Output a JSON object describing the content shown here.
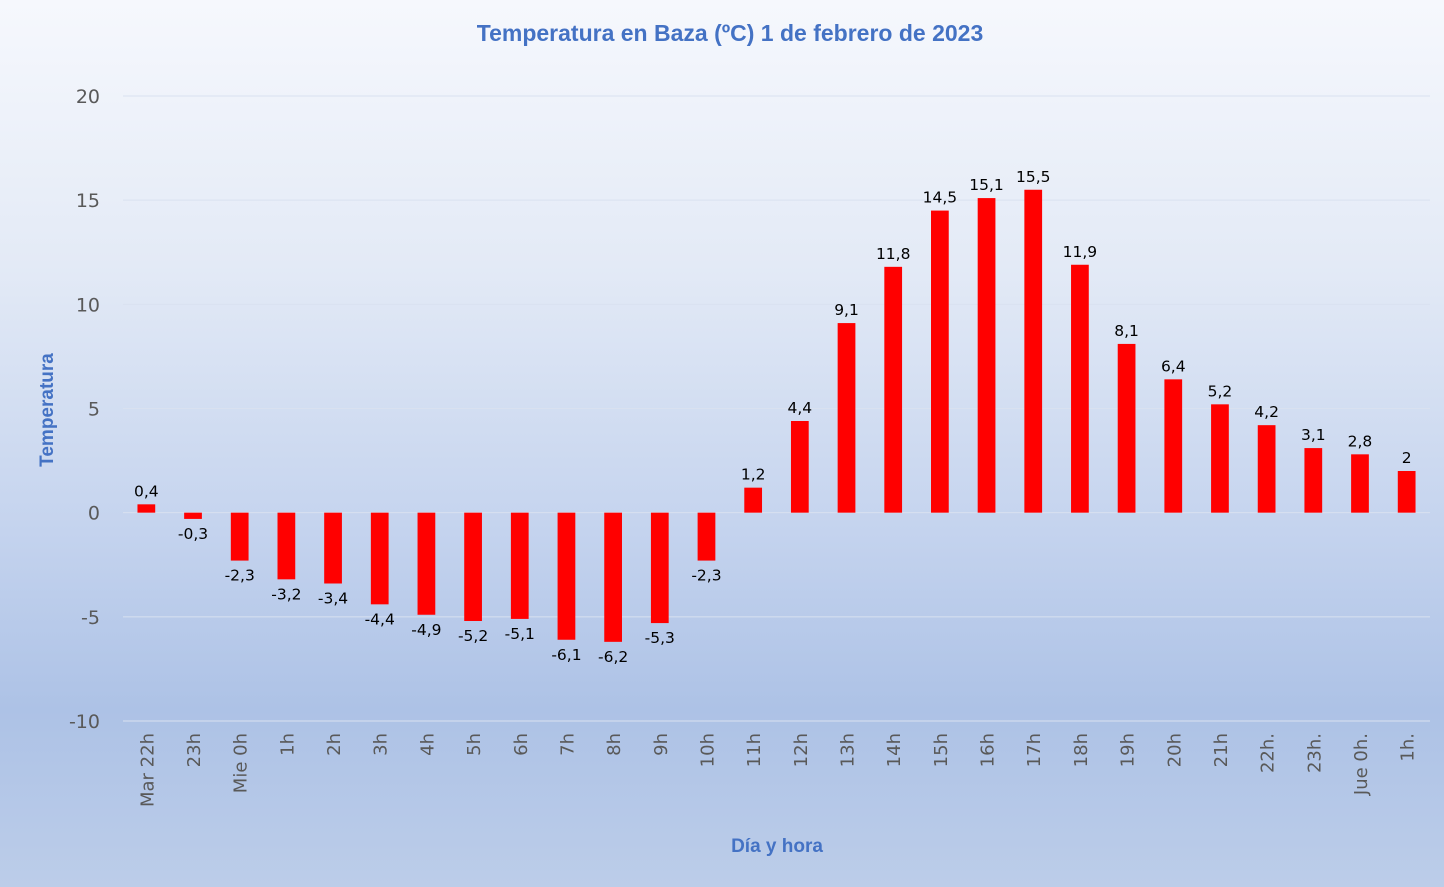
{
  "chart_data": {
    "type": "bar",
    "title": "Temperatura en Baza (ºC) 1 de febrero de 2023",
    "xlabel": "Día y hora",
    "ylabel": "Temperatura",
    "ylim": [
      -10,
      20
    ],
    "yticks": [
      20,
      15,
      10,
      5,
      0,
      -5,
      -10
    ],
    "grid": true,
    "legend": "none",
    "bar_color": "#ff0000",
    "title_color": "#4472c4",
    "categories": [
      "Mar 22h",
      "23h",
      "Mie 0h",
      "1h",
      "2h",
      "3h",
      "4h",
      "5h",
      "6h",
      "7h",
      "8h",
      "9h",
      "10h",
      "11h",
      "12h",
      "13h",
      "14h",
      "15h",
      "16h",
      "17h",
      "18h",
      "19h",
      "20h",
      "21h",
      "22h.",
      "23h.",
      "Jue 0h.",
      "1h."
    ],
    "values": [
      0.4,
      -0.3,
      -2.3,
      -3.2,
      -3.4,
      -4.4,
      -4.9,
      -5.2,
      -5.1,
      -6.1,
      -6.2,
      -5.3,
      -2.3,
      1.2,
      4.4,
      9.1,
      11.8,
      14.5,
      15.1,
      15.5,
      11.9,
      8.1,
      6.4,
      5.2,
      4.2,
      3.1,
      2.8,
      2
    ],
    "data_labels": [
      "0,4",
      "-0,3",
      "-2,3",
      "-3,2",
      "-3,4",
      "-4,4",
      "-4,9",
      "-5,2",
      "-5,1",
      "-6,1",
      "-6,2",
      "-5,3",
      "-2,3",
      "1,2",
      "4,4",
      "9,1",
      "11,8",
      "14,5",
      "15,1",
      "15,5",
      "11,9",
      "8,1",
      "6,4",
      "5,2",
      "4,2",
      "3,1",
      "2,8",
      "2"
    ]
  }
}
